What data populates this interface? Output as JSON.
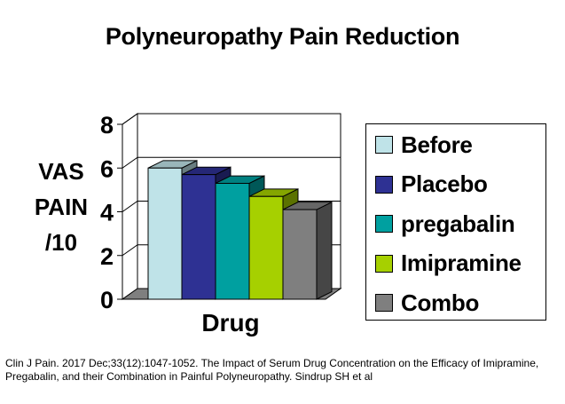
{
  "title": "Polyneuropathy Pain Reduction",
  "ylabel_lines": [
    "VAS",
    "PAIN",
    "/10"
  ],
  "xlabel": "Drug",
  "citation": "Clin J Pain. 2017 Dec;33(12):1047-1052. The Impact of Serum Drug Concentration on the Efficacy of Imipramine, Pregabalin, and their Combination in Painful Polyneuropathy. Sindrup SH et al",
  "chart_data": {
    "type": "bar",
    "title": "Polyneuropathy Pain Reduction",
    "xlabel": "Drug",
    "ylabel": "VAS PAIN /10",
    "categories": [
      "Drug"
    ],
    "ylim": [
      0,
      8
    ],
    "yticks": [
      "0",
      "2",
      "4",
      "6",
      "8"
    ],
    "grid": true,
    "style": "3d",
    "legend_position": "right",
    "series": [
      {
        "name": "Before",
        "values": [
          6.0
        ],
        "color": "#bfe3e8"
      },
      {
        "name": "Placebo",
        "values": [
          5.7
        ],
        "color": "#2e3193"
      },
      {
        "name": "pregabalin",
        "values": [
          5.3
        ],
        "color": "#00a0a0"
      },
      {
        "name": "Imipramine",
        "values": [
          4.7
        ],
        "color": "#a6d000"
      },
      {
        "name": "Combo",
        "values": [
          4.1
        ],
        "color": "#7f7f7f"
      }
    ]
  }
}
